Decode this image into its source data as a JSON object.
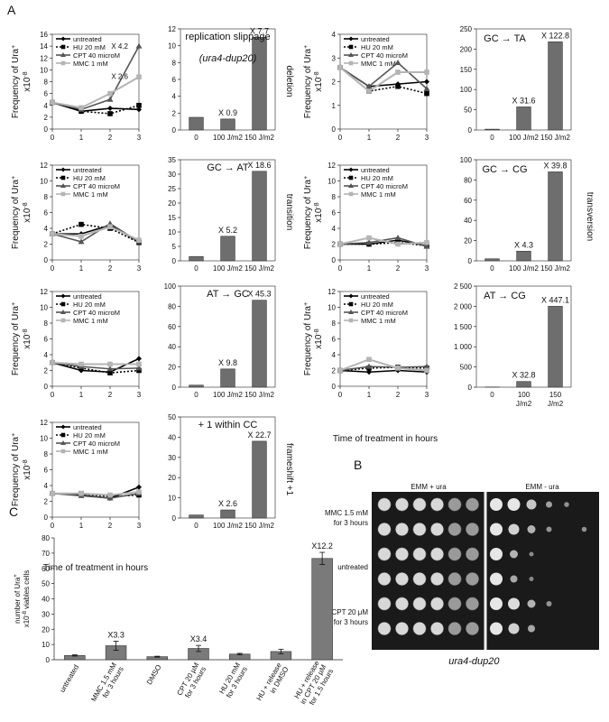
{
  "panel_labels": {
    "A": "A",
    "B": "B",
    "C": "C"
  },
  "common": {
    "time_ticks": [
      "0",
      "1",
      "2",
      "3"
    ],
    "bar_ticks": [
      "0",
      "100 J/m2",
      "150 J/m2"
    ],
    "x_axis_label": "Time of treatment in hours",
    "y_axis_label": "Frequency of Ura+",
    "y_axis_unit": "x10-8",
    "series_names": [
      "untreated",
      "HU 20 mM",
      "CPT 40 microM",
      "MMC 1 mM"
    ],
    "series_colors": [
      "#000000",
      "#000000",
      "#555555",
      "#b4b4b4"
    ],
    "series_styles": [
      "solid-diamond",
      "dotted-square",
      "solid-triangle",
      "solid-square"
    ]
  },
  "chart_data": [
    {
      "id": "deletion",
      "type": "line",
      "side_label": "deletion",
      "ylim": [
        0,
        16
      ],
      "yticks": [
        0,
        2,
        4,
        6,
        8,
        10,
        12,
        14,
        16
      ],
      "x": [
        0,
        1,
        2,
        3
      ],
      "series": [
        {
          "name": "untreated",
          "values": [
            4.5,
            3.0,
            3.5,
            3.3
          ]
        },
        {
          "name": "HU 20 mM",
          "values": [
            4.5,
            3.0,
            2.6,
            4.0
          ]
        },
        {
          "name": "CPT 40 microM",
          "values": [
            4.5,
            3.3,
            5.0,
            14.0
          ]
        },
        {
          "name": "MMC 1 mM",
          "values": [
            4.5,
            3.6,
            6.0,
            8.8
          ]
        }
      ],
      "annotations": [
        "X 4.2",
        "X 2.6"
      ]
    },
    {
      "id": "slippage-bars",
      "type": "bar",
      "title": "replication slippage",
      "subtitle": "(ura4-dup20)",
      "categories": [
        "0",
        "100 J/m2",
        "150 J/m2"
      ],
      "values": [
        1.5,
        1.3,
        11.0
      ],
      "ylim": [
        0,
        12
      ],
      "yticks": [
        0,
        2,
        4,
        6,
        8,
        10,
        12
      ],
      "labels": [
        "",
        "X 0.9",
        "X 7.7"
      ]
    },
    {
      "id": "gc-ta-line",
      "type": "line",
      "ylim": [
        0,
        4
      ],
      "yticks": [
        0,
        1,
        2,
        3,
        4
      ],
      "x": [
        0,
        1,
        2,
        3
      ],
      "series": [
        {
          "name": "untreated",
          "values": [
            2.6,
            1.8,
            1.9,
            2.0
          ]
        },
        {
          "name": "HU 20 mM",
          "values": [
            2.6,
            1.6,
            1.8,
            1.5
          ]
        },
        {
          "name": "CPT 40 microM",
          "values": [
            2.6,
            1.8,
            2.8,
            1.7
          ]
        },
        {
          "name": "MMC 1 mM",
          "values": [
            2.6,
            1.6,
            2.4,
            2.4
          ]
        }
      ]
    },
    {
      "id": "gc-ta-bars",
      "type": "bar",
      "title": "GC → TA",
      "categories": [
        "0",
        "100 J/m2",
        "150 J/m2"
      ],
      "values": [
        2,
        57,
        218
      ],
      "ylim": [
        0,
        250
      ],
      "yticks": [
        0,
        50,
        100,
        150,
        200,
        250
      ],
      "labels": [
        "",
        "X 31.6",
        "X 122.8"
      ]
    },
    {
      "id": "transition-line",
      "type": "line",
      "side_label": "transition",
      "ylim": [
        0,
        12
      ],
      "yticks": [
        0,
        2,
        4,
        6,
        8,
        10,
        12
      ],
      "x": [
        0,
        1,
        2,
        3
      ],
      "series": [
        {
          "name": "untreated",
          "values": [
            3.3,
            3.3,
            4.4,
            2.3
          ]
        },
        {
          "name": "HU 20 mM",
          "values": [
            3.3,
            4.5,
            4.0,
            2.2
          ]
        },
        {
          "name": "CPT 40 microM",
          "values": [
            3.3,
            2.3,
            4.6,
            2.3
          ]
        },
        {
          "name": "MMC 1 mM",
          "values": [
            3.3,
            3.0,
            4.2,
            2.5
          ]
        }
      ]
    },
    {
      "id": "gc-at-bars",
      "type": "bar",
      "title": "GC → AT",
      "categories": [
        "0",
        "100 J/m2",
        "150 J/m2"
      ],
      "values": [
        1.5,
        8.5,
        31.0
      ],
      "ylim": [
        0,
        35
      ],
      "yticks": [
        0,
        5,
        10,
        15,
        20,
        25,
        30,
        35
      ],
      "labels": [
        "",
        "X 5.2",
        "X 18.6"
      ]
    },
    {
      "id": "gc-cg-line",
      "type": "line",
      "side_label": "transversion",
      "ylim": [
        0,
        12
      ],
      "yticks": [
        0,
        2,
        4,
        6,
        8,
        10,
        12
      ],
      "x": [
        0,
        1,
        2,
        3
      ],
      "series": [
        {
          "name": "untreated",
          "values": [
            2.0,
            2.0,
            2.5,
            1.8
          ]
        },
        {
          "name": "HU 20 mM",
          "values": [
            2.0,
            2.0,
            2.2,
            1.8
          ]
        },
        {
          "name": "CPT 40 microM",
          "values": [
            2.0,
            2.2,
            2.8,
            1.7
          ]
        },
        {
          "name": "MMC 1 mM",
          "values": [
            2.0,
            2.8,
            2.0,
            2.2
          ]
        }
      ]
    },
    {
      "id": "gc-cg-bars",
      "type": "bar",
      "title": "GC → CG",
      "categories": [
        "0",
        "100 J/m2",
        "150 J/m2"
      ],
      "values": [
        2,
        9.5,
        88
      ],
      "ylim": [
        0,
        100
      ],
      "yticks": [
        0,
        20,
        40,
        60,
        80,
        100
      ],
      "labels": [
        "",
        "X 4.3",
        "X 39.8"
      ]
    },
    {
      "id": "at-gc-line",
      "type": "line",
      "ylim": [
        0,
        12
      ],
      "yticks": [
        0,
        2,
        4,
        6,
        8,
        10,
        12
      ],
      "x": [
        0,
        1,
        2,
        3
      ],
      "series": [
        {
          "name": "untreated",
          "values": [
            3.0,
            2.0,
            1.8,
            3.5
          ]
        },
        {
          "name": "HU 20 mM",
          "values": [
            3.0,
            2.3,
            1.7,
            2.0
          ]
        },
        {
          "name": "CPT 40 microM",
          "values": [
            3.0,
            2.5,
            2.2,
            2.3
          ]
        },
        {
          "name": "MMC 1 mM",
          "values": [
            3.0,
            2.8,
            2.8,
            2.8
          ]
        }
      ]
    },
    {
      "id": "at-gc-bars",
      "type": "bar",
      "title": "AT → GC",
      "categories": [
        "0",
        "100 J/m2",
        "150 J/m2"
      ],
      "values": [
        2,
        18,
        86
      ],
      "ylim": [
        0,
        100
      ],
      "yticks": [
        0,
        20,
        40,
        60,
        80,
        100
      ],
      "labels": [
        "",
        "X 9.8",
        "X 45.3"
      ]
    },
    {
      "id": "at-cg-line",
      "type": "line",
      "ylim": [
        0,
        12
      ],
      "yticks": [
        0,
        2,
        4,
        6,
        8,
        10,
        12
      ],
      "x": [
        0,
        1,
        2,
        3
      ],
      "series": [
        {
          "name": "untreated",
          "values": [
            2.0,
            1.8,
            2.0,
            1.8
          ]
        },
        {
          "name": "HU 20 mM",
          "values": [
            2.0,
            2.3,
            2.4,
            2.3
          ]
        },
        {
          "name": "CPT 40 microM",
          "values": [
            2.0,
            2.5,
            2.4,
            2.5
          ]
        },
        {
          "name": "MMC 1 mM",
          "values": [
            2.0,
            3.4,
            2.3,
            2.0
          ]
        }
      ]
    },
    {
      "id": "at-cg-bars",
      "type": "bar",
      "title": "AT → CG",
      "categories": [
        "0",
        "100 J/m2",
        "150 J/m2"
      ],
      "tick_lines": [
        [
          "0"
        ],
        [
          "100",
          "J/m2"
        ],
        [
          "150",
          "J/m2"
        ]
      ],
      "values": [
        5,
        140,
        2000
      ],
      "ylim": [
        0,
        2500
      ],
      "yticks": [
        "0",
        "500",
        "1 000",
        "1 500",
        "2 000",
        "2 500"
      ],
      "labels": [
        "",
        "X 32.8",
        "X 447.1"
      ]
    },
    {
      "id": "frameshift-line",
      "type": "line",
      "side_label": "frameshift +1",
      "ylim": [
        0,
        12
      ],
      "yticks": [
        0,
        2,
        4,
        6,
        8,
        10,
        12
      ],
      "x": [
        0,
        1,
        2,
        3
      ],
      "series": [
        {
          "name": "untreated",
          "values": [
            3.0,
            2.8,
            2.4,
            3.8
          ]
        },
        {
          "name": "HU 20 mM",
          "values": [
            3.0,
            3.0,
            2.6,
            2.8
          ]
        },
        {
          "name": "CPT 40 microM",
          "values": [
            3.0,
            2.7,
            2.4,
            3.0
          ]
        },
        {
          "name": "MMC 1 mM",
          "values": [
            3.0,
            3.0,
            2.8,
            3.2
          ]
        }
      ]
    },
    {
      "id": "frameshift-bars",
      "type": "bar",
      "title": "+ 1 within CC",
      "categories": [
        "0",
        "100 J/m2",
        "150 J/m2"
      ],
      "values": [
        1.5,
        4.0,
        38.0
      ],
      "ylim": [
        0,
        50
      ],
      "yticks": [
        0,
        10,
        20,
        30,
        40,
        50
      ],
      "labels": [
        "",
        "X 2.6",
        "X 22.7"
      ]
    },
    {
      "id": "panel-c",
      "type": "bar",
      "ylabel": "number of Ura+ x10-8 viables cells",
      "categories": [
        "untreated",
        "MMC 1.5 mM for 3 hours",
        "DMSO",
        "CPT 20 µM for 3 hours",
        "HU 20 mM for 3 hours",
        "HU + release in DMSO",
        "HU + release in CPT 20 µM for 1.5 hours"
      ],
      "category_lines": [
        [
          "untreated"
        ],
        [
          "MMC 1.5 mM",
          "for 3 hours"
        ],
        [
          "DMSO"
        ],
        [
          "CPT 20 µM",
          "for 3 hours"
        ],
        [
          "HU 20 mM",
          "for 3 hours"
        ],
        [
          "HU + release",
          "in DMSO"
        ],
        [
          "HU + release",
          "in CPT 20 µM",
          "for 1.5 hours"
        ]
      ],
      "values": [
        2.8,
        9.2,
        2.0,
        7.4,
        3.7,
        5.4,
        66.5
      ],
      "errors": [
        0.4,
        3.0,
        0.3,
        2.0,
        0.5,
        1.5,
        4.0
      ],
      "ylim": [
        0,
        80
      ],
      "yticks": [
        0,
        10,
        20,
        30,
        40,
        50,
        60,
        70,
        80
      ],
      "labels": [
        "",
        "X3.3",
        "",
        "X3.4",
        "",
        "",
        "X12.2"
      ]
    }
  ],
  "panel_b": {
    "col_headers": [
      "EMM + ura",
      "EMM - ura"
    ],
    "row_labels": [
      "MMC 1.5 mM\nfor 3 hours",
      "untreated",
      "CPT 20 μM\nfor 3 hours"
    ],
    "row_label_lines": [
      [
        "MMC 1.5 mM",
        "for 3 hours"
      ],
      [
        "untreated"
      ],
      [
        "CPT 20 μM",
        "for 3 hours"
      ]
    ],
    "caption": "ura4-dup20"
  }
}
